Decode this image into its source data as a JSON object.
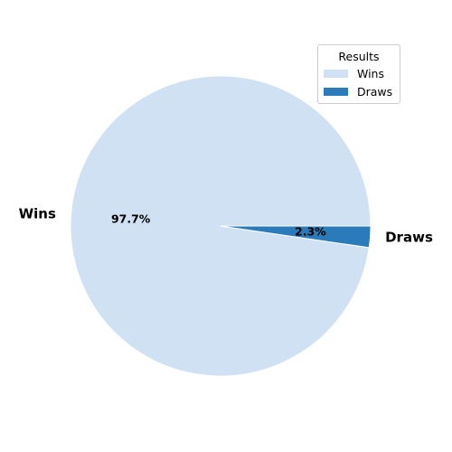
{
  "chart_data": {
    "type": "pie",
    "title": "",
    "categories": [
      "Wins",
      "Draws"
    ],
    "values": [
      97.7,
      2.3
    ],
    "percent_labels": [
      "97.7%",
      "2.3%"
    ],
    "colors": [
      "#cfe1f2",
      "#2b7bba"
    ],
    "slice_edge_color": "#ffffff",
    "start_angle_deg": 0,
    "direction": "counterclockwise",
    "legend": {
      "title": "Results",
      "placement": "top-right",
      "entries": [
        "Wins",
        "Draws"
      ]
    }
  }
}
